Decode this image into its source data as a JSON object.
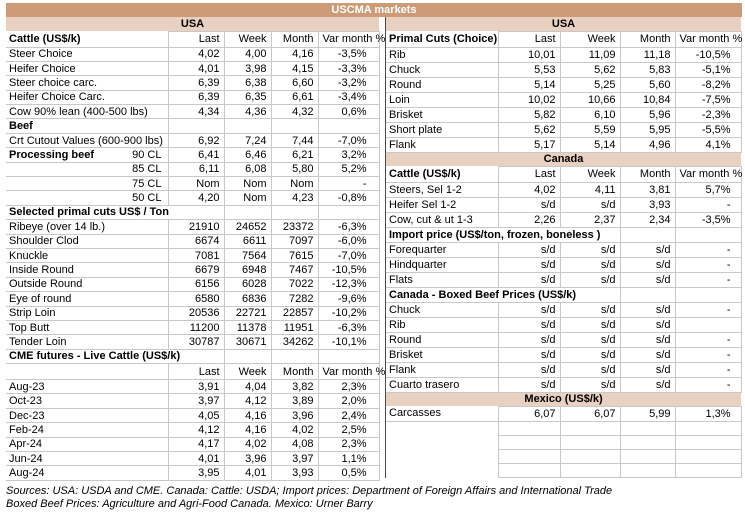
{
  "title": "USCMA markets",
  "colors": {
    "title_bg": "#cd9b78",
    "region_bar_bg": "#e9d1c2",
    "grid_line": "#c8c8c8",
    "table_separator": "#4a4a4a",
    "title_text": "#ffffff",
    "body_text": "#000000"
  },
  "column_headers": [
    "Last",
    "Week",
    "Month",
    "Var month %"
  ],
  "left_table": {
    "region": "USA",
    "rows": [
      {
        "type": "colhead",
        "label": "Cattle (US$/k)"
      },
      {
        "type": "data",
        "label": "Steer Choice",
        "values": [
          "4,02",
          "4,00",
          "4,16",
          "-3,5%"
        ]
      },
      {
        "type": "data",
        "label": "Heifer Choice",
        "values": [
          "4,01",
          "3,98",
          "4,15",
          "-3,3%"
        ]
      },
      {
        "type": "data",
        "label": "Steer choice carc.",
        "values": [
          "6,39",
          "6,38",
          "6,60",
          "-3,2%"
        ]
      },
      {
        "type": "data",
        "label": "Heifer Choice Carc.",
        "values": [
          "6,39",
          "6,35",
          "6,61",
          "-3,4%"
        ]
      },
      {
        "type": "data",
        "label": "Cow 90% lean (400-500 lbs)",
        "values": [
          "4,34",
          "4,36",
          "4,32",
          "0,6%"
        ]
      },
      {
        "type": "section",
        "label": "Beef",
        "span": 1
      },
      {
        "type": "data",
        "label": "Crt Cutout Values (600-900 lbs)",
        "values": [
          "6,92",
          "7,24",
          "7,44",
          "-7,0%"
        ]
      },
      {
        "type": "data",
        "label": "Processing beef",
        "label_bold": true,
        "sublabel": "90 CL",
        "values": [
          "6,41",
          "6,46",
          "6,21",
          "3,2%"
        ]
      },
      {
        "type": "data",
        "label": "",
        "sublabel": "85 CL",
        "values": [
          "6,11",
          "6,08",
          "5,80",
          "5,2%"
        ]
      },
      {
        "type": "data",
        "label": "",
        "sublabel": "75 CL",
        "values": [
          "Nom",
          "Nom",
          "Nom",
          "-"
        ]
      },
      {
        "type": "data",
        "label": "",
        "sublabel": "50 CL",
        "values": [
          "4,20",
          "Nom",
          "4,23",
          "-0,8%"
        ]
      },
      {
        "type": "section",
        "label": "Selected primal cuts US$ / Ton",
        "span": 2
      },
      {
        "type": "data",
        "label": "Ribeye (over 14 lb.)",
        "values": [
          "21910",
          "24652",
          "23372",
          "-6,3%"
        ]
      },
      {
        "type": "data",
        "label": "Shoulder Clod",
        "values": [
          "6674",
          "6611",
          "7097",
          "-6,0%"
        ]
      },
      {
        "type": "data",
        "label": "Knuckle",
        "values": [
          "7081",
          "7564",
          "7615",
          "-7,0%"
        ]
      },
      {
        "type": "data",
        "label": "Inside Round",
        "values": [
          "6679",
          "6948",
          "7467",
          "-10,5%"
        ]
      },
      {
        "type": "data",
        "label": "Outside Round",
        "values": [
          "6156",
          "6028",
          "7022",
          "-12,3%"
        ]
      },
      {
        "type": "data",
        "label": "Eye of round",
        "values": [
          "6580",
          "6836",
          "7282",
          "-9,6%"
        ]
      },
      {
        "type": "data",
        "label": "Strip Loin",
        "values": [
          "20536",
          "22721",
          "22857",
          "-10,2%"
        ]
      },
      {
        "type": "data",
        "label": "Top Butt",
        "values": [
          "11200",
          "11378",
          "11951",
          "-6,3%"
        ]
      },
      {
        "type": "data",
        "label": "Tender Loin",
        "values": [
          "30787",
          "30671",
          "34262",
          "-10,1%"
        ]
      },
      {
        "type": "section",
        "label": "CME futures - Live Cattle (US$/k)",
        "span": 2
      },
      {
        "type": "colhead",
        "label": ""
      },
      {
        "type": "data",
        "label": "Aug-23",
        "values": [
          "3,91",
          "4,04",
          "3,82",
          "2,3%"
        ]
      },
      {
        "type": "data",
        "label": "Oct-23",
        "values": [
          "3,97",
          "4,12",
          "3,89",
          "2,0%"
        ]
      },
      {
        "type": "data",
        "label": "Dec-23",
        "values": [
          "4,05",
          "4,16",
          "3,96",
          "2,4%"
        ]
      },
      {
        "type": "data",
        "label": "Feb-24",
        "values": [
          "4,12",
          "4,16",
          "4,02",
          "2,5%"
        ]
      },
      {
        "type": "data",
        "label": "Apr-24",
        "values": [
          "4,17",
          "4,02",
          "4,08",
          "2,3%"
        ]
      },
      {
        "type": "data",
        "label": "Jun-24",
        "values": [
          "4,01",
          "3,96",
          "3,97",
          "1,1%"
        ]
      },
      {
        "type": "data",
        "label": "Aug-24",
        "values": [
          "3,95",
          "4,01",
          "3,93",
          "0,5%"
        ]
      }
    ]
  },
  "right_table": {
    "region": "USA",
    "rows": [
      {
        "type": "colhead",
        "label": "Primal Cuts (Choice)"
      },
      {
        "type": "data",
        "label": "Rib",
        "values": [
          "10,01",
          "11,09",
          "11,18",
          "-10,5%"
        ]
      },
      {
        "type": "data",
        "label": "Chuck",
        "values": [
          "5,53",
          "5,62",
          "5,83",
          "-5,1%"
        ]
      },
      {
        "type": "data",
        "label": "Round",
        "values": [
          "5,14",
          "5,25",
          "5,60",
          "-8,2%"
        ]
      },
      {
        "type": "data",
        "label": "Loin",
        "values": [
          "10,02",
          "10,66",
          "10,84",
          "-7,5%"
        ]
      },
      {
        "type": "data",
        "label": "Brisket",
        "values": [
          "5,82",
          "6,10",
          "5,96",
          "-2,3%"
        ]
      },
      {
        "type": "data",
        "label": "Short plate",
        "values": [
          "5,62",
          "5,59",
          "5,95",
          "-5,5%"
        ]
      },
      {
        "type": "data",
        "label": "Flank",
        "values": [
          "5,17",
          "5,14",
          "4,96",
          "4,1%"
        ]
      },
      {
        "type": "bar",
        "label": "Canada"
      },
      {
        "type": "colhead",
        "label": "Cattle (US$/k)"
      },
      {
        "type": "data",
        "label": "Steers, Sel 1-2",
        "values": [
          "4,02",
          "4,11",
          "3,81",
          "5,7%"
        ]
      },
      {
        "type": "data",
        "label": "Heifer Sel 1-2",
        "values": [
          "s/d",
          "s/d",
          "3,93",
          "-"
        ]
      },
      {
        "type": "data",
        "label": "Cow, cut & ut 1-3",
        "values": [
          "2,26",
          "2,37",
          "2,34",
          "-3,5%"
        ]
      },
      {
        "type": "section",
        "label": "Import price (US$/ton, frozen, boneless )",
        "span": 3
      },
      {
        "type": "data",
        "label": "Forequarter",
        "values": [
          "s/d",
          "s/d",
          "s/d",
          "-"
        ]
      },
      {
        "type": "data",
        "label": "Hindquarter",
        "values": [
          "s/d",
          "s/d",
          "s/d",
          "-"
        ]
      },
      {
        "type": "data",
        "label": "Flats",
        "values": [
          "s/d",
          "s/d",
          "s/d",
          "-"
        ]
      },
      {
        "type": "section",
        "label": "Canada - Boxed Beef Prices (US$/k)",
        "span": 3
      },
      {
        "type": "data",
        "label": "Chuck",
        "values": [
          "s/d",
          "s/d",
          "s/d",
          "-"
        ]
      },
      {
        "type": "data",
        "label": "Rib",
        "values": [
          "s/d",
          "s/d",
          "s/d",
          ""
        ]
      },
      {
        "type": "data",
        "label": "Round",
        "values": [
          "s/d",
          "s/d",
          "s/d",
          "-"
        ]
      },
      {
        "type": "data",
        "label": "Brisket",
        "values": [
          "s/d",
          "s/d",
          "s/d",
          "-"
        ]
      },
      {
        "type": "data",
        "label": "Flank",
        "values": [
          "s/d",
          "s/d",
          "s/d",
          "-"
        ]
      },
      {
        "type": "data",
        "label": "Cuarto trasero",
        "values": [
          "s/d",
          "s/d",
          "s/d",
          "-"
        ]
      },
      {
        "type": "bar",
        "label": "Mexico (US$/k)"
      },
      {
        "type": "data",
        "label": "Carcasses",
        "values": [
          "6,07",
          "6,07",
          "5,99",
          "1,3%"
        ]
      },
      {
        "type": "empty"
      },
      {
        "type": "empty"
      },
      {
        "type": "empty"
      },
      {
        "type": "empty"
      }
    ]
  },
  "sources": {
    "line1": "Sources: USA: USDA and CME. Canada: Cattle: USDA; Import prices: Department of Foreign Affairs and International Trade",
    "line2": "Boxed Beef Prices: Agriculture and Agri-Food Canada. Mexico: Urner Barry"
  }
}
